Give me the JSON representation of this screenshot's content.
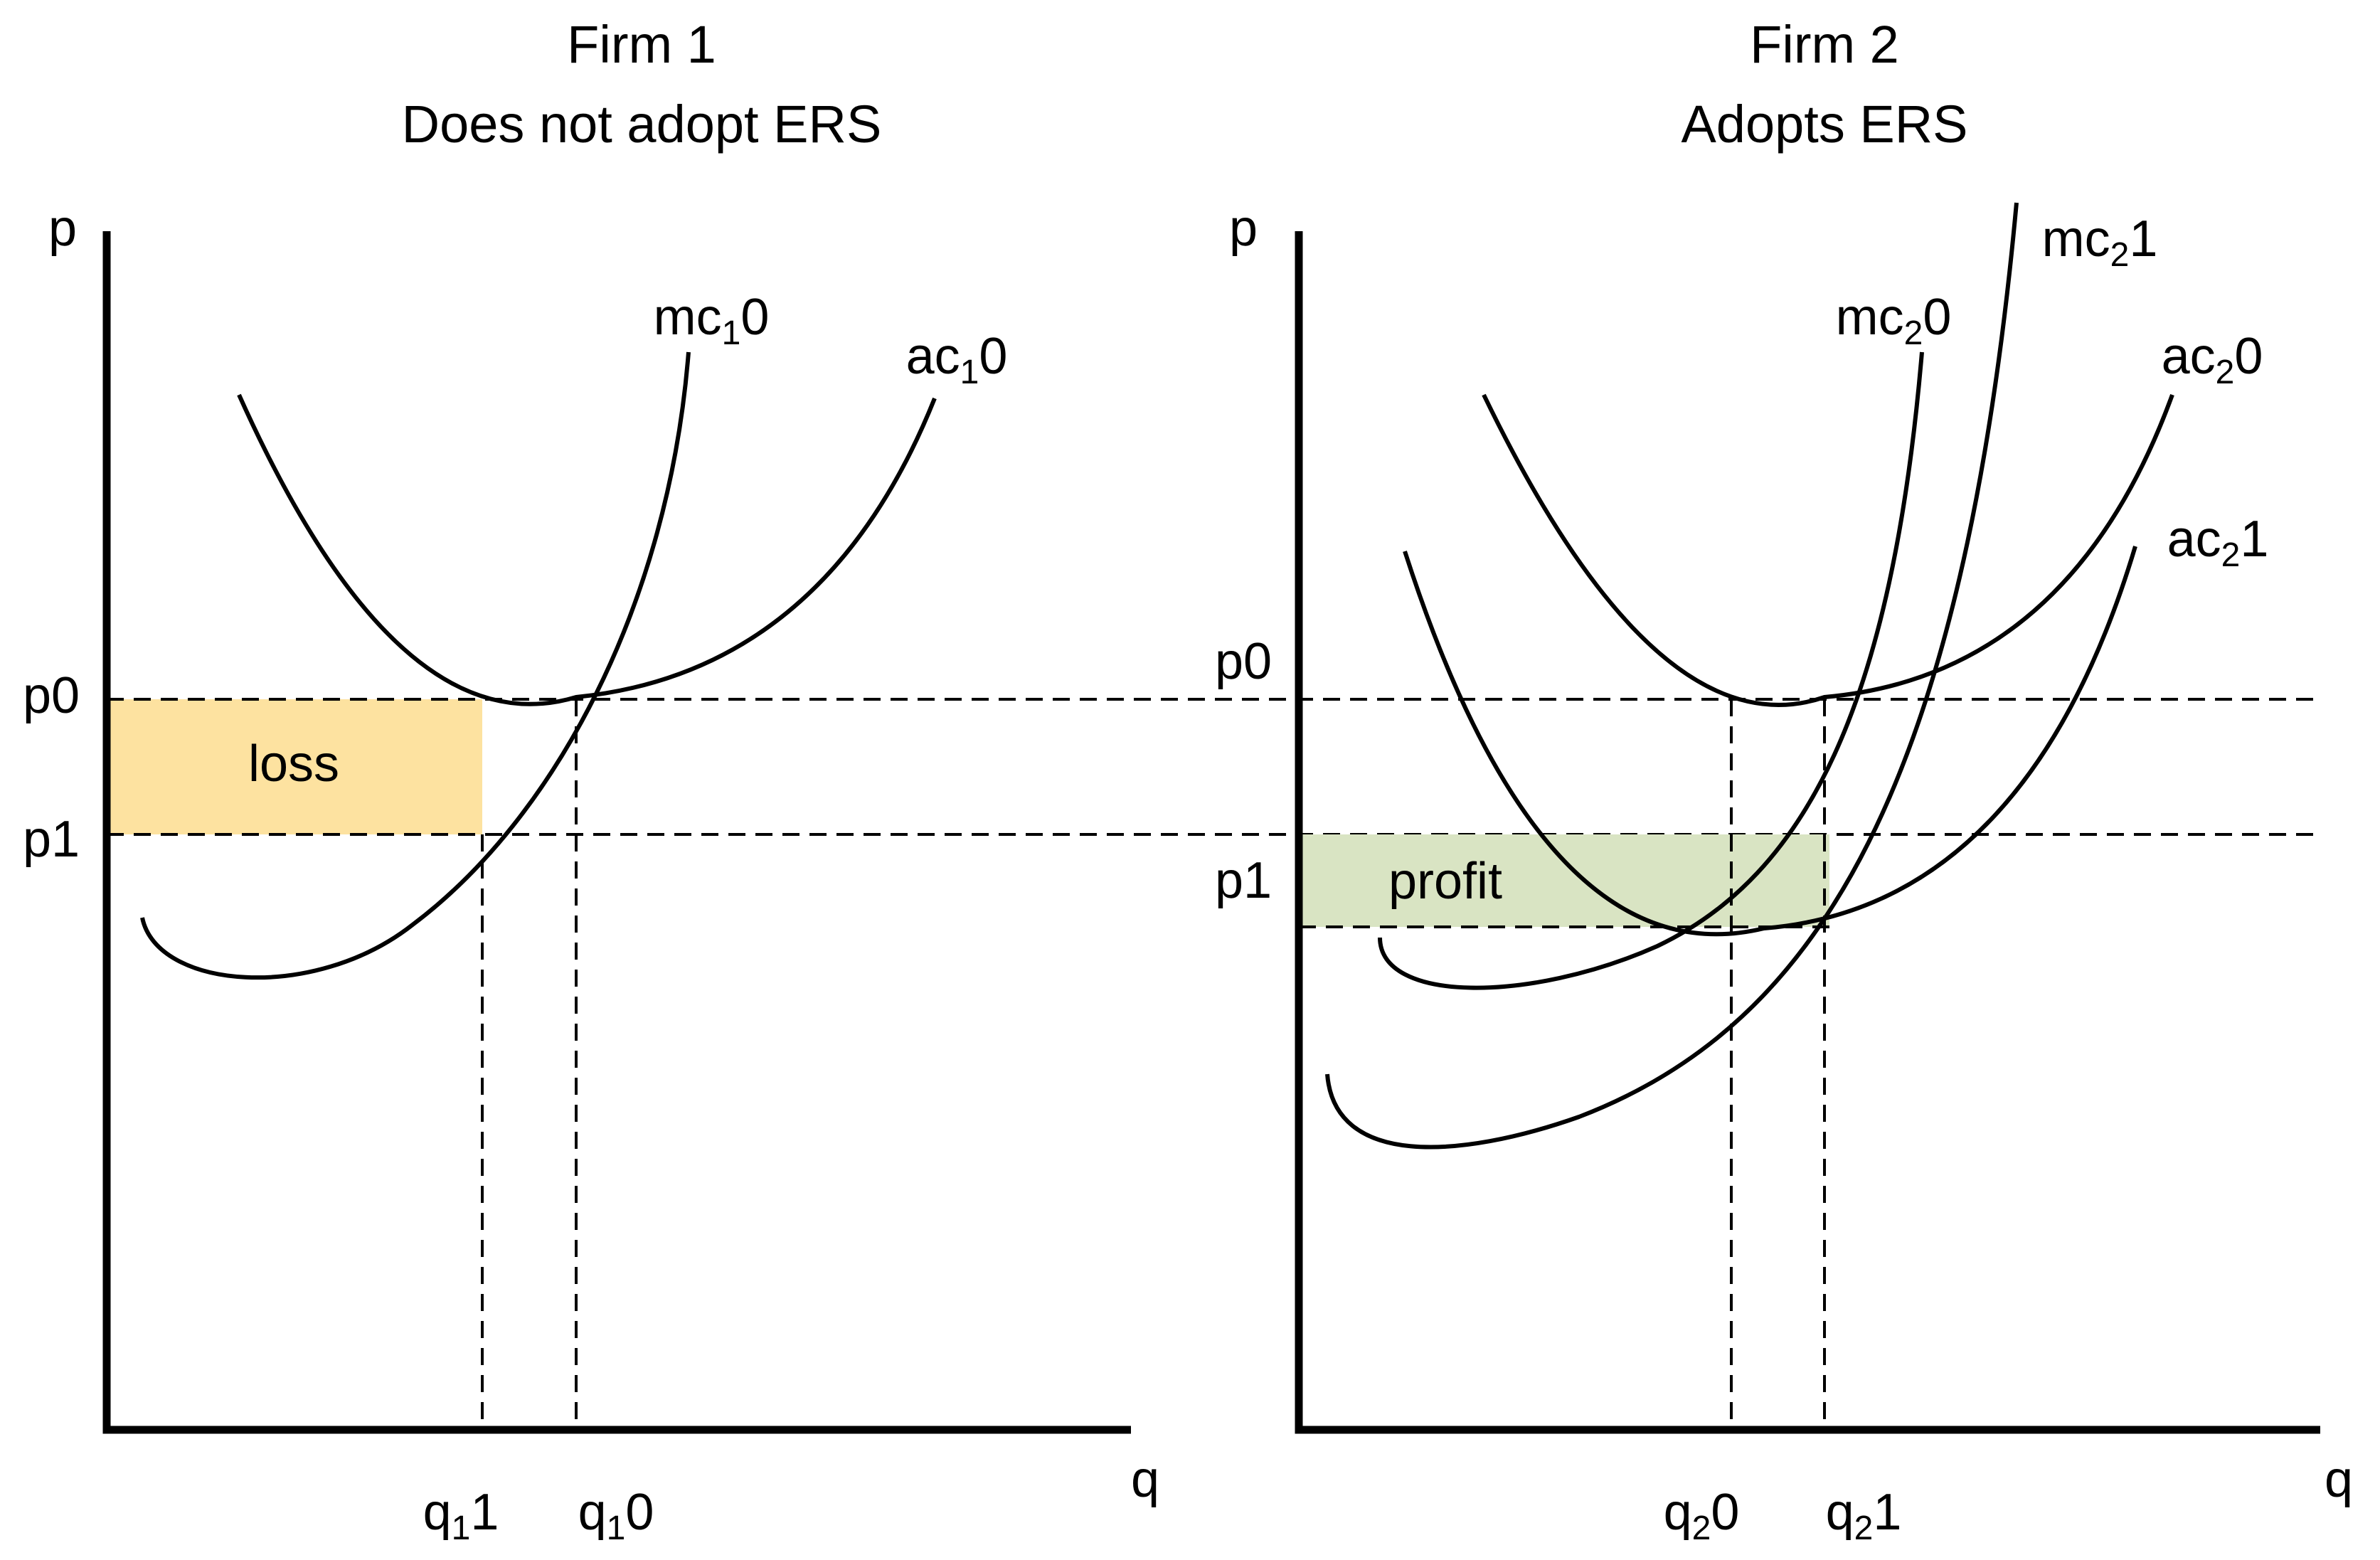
{
  "colors": {
    "loss_fill": "#fde2a0",
    "profit_fill": "#d9e4c3",
    "line": "#000000",
    "background": "#ffffff"
  },
  "firm1": {
    "title_line1": "Firm 1",
    "title_line2": "Does not adopt ERS",
    "y_axis_label": "p",
    "x_axis_label": "q",
    "price_labels": {
      "p0": "p0",
      "p1": "p1"
    },
    "curves": {
      "mc0": {
        "base": "mc",
        "sub": "1",
        "suffix": "0"
      },
      "ac0": {
        "base": "ac",
        "sub": "1",
        "suffix": "0"
      }
    },
    "quantity_labels": {
      "q1": {
        "base": "q",
        "sub": "1",
        "suffix": "1"
      },
      "q0": {
        "base": "q",
        "sub": "1",
        "suffix": "0"
      }
    },
    "area_label": "loss"
  },
  "firm2": {
    "title_line1": "Firm 2",
    "title_line2": "Adopts ERS",
    "y_axis_label": "p",
    "x_axis_label": "q",
    "price_labels": {
      "p0": "p0",
      "p1": "p1"
    },
    "curves": {
      "mc1": {
        "base": "mc",
        "sub": "2",
        "suffix": "1"
      },
      "mc0": {
        "base": "mc",
        "sub": "2",
        "suffix": "0"
      },
      "ac0": {
        "base": "ac",
        "sub": "2",
        "suffix": "0"
      },
      "ac1": {
        "base": "ac",
        "sub": "2",
        "suffix": "1"
      }
    },
    "quantity_labels": {
      "q0": {
        "base": "q",
        "sub": "2",
        "suffix": "0"
      },
      "q1": {
        "base": "q",
        "sub": "2",
        "suffix": "1"
      }
    },
    "area_label": "profit"
  }
}
